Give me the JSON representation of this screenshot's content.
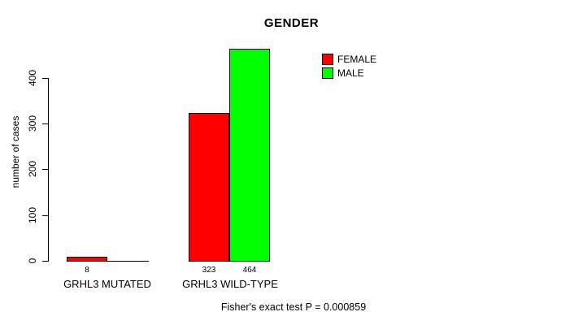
{
  "colors": {
    "female": "#FF0000",
    "male": "#00FF00",
    "axis": "#000000",
    "background": "#FFFFFF"
  },
  "chart_data": {
    "type": "bar",
    "title": "GENDER",
    "categories": [
      "GRHL3 MUTATED",
      "GRHL3 WILD-TYPE"
    ],
    "series": [
      {
        "name": "FEMALE",
        "color": "#FF0000",
        "values": [
          8,
          323
        ]
      },
      {
        "name": "MALE",
        "color": "#00FF00",
        "values": [
          0,
          464
        ]
      }
    ],
    "ylabel": "number of cases",
    "xlabel": "",
    "yticks": [
      0,
      100,
      200,
      300,
      400
    ],
    "ylim": [
      0,
      464
    ],
    "bar_value_labels_shown": [
      "8",
      "323",
      "464"
    ],
    "zero_value_labels_hidden": true,
    "grid": false,
    "legend_position": "top-right",
    "annotation": "Fisher's exact test P = 0.000859"
  }
}
